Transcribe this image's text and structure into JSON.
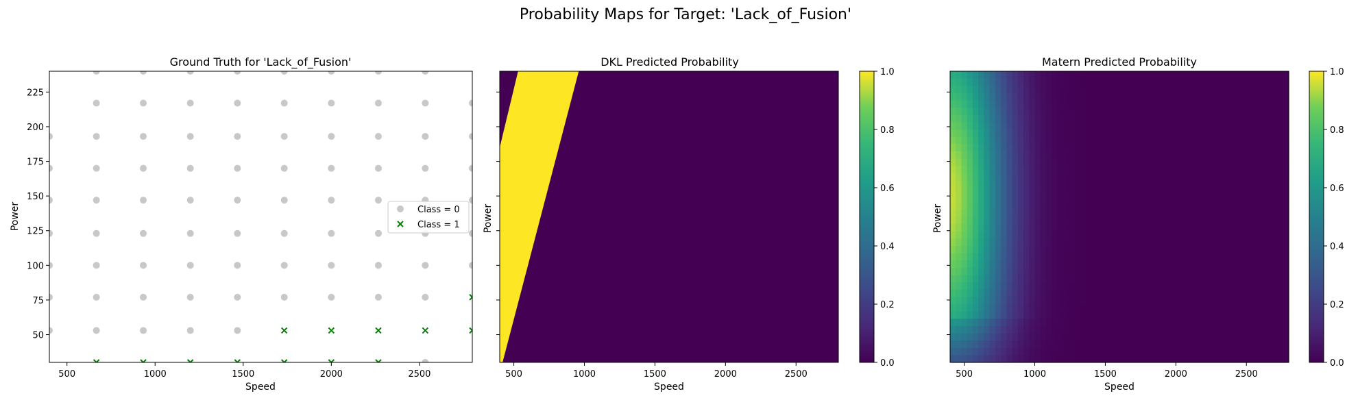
{
  "figure": {
    "title": "Probability Maps for Target: 'Lack_of_Fusion'"
  },
  "chart_data": [
    {
      "type": "scatter",
      "title": "Ground Truth for 'Lack_of_Fusion'",
      "xlabel": "Speed",
      "ylabel": "Power",
      "xlim": [
        400,
        2800
      ],
      "ylim": [
        30,
        240
      ],
      "xticks": [
        500,
        1000,
        1500,
        2000,
        2500
      ],
      "yticks": [
        50,
        75,
        100,
        125,
        150,
        175,
        200,
        225
      ],
      "legend_placement": "center-right",
      "series": [
        {
          "name": "Class = 0",
          "marker": "circle",
          "color": "#c8c8c8",
          "points": [
            [
              400,
              53
            ],
            [
              400,
              77
            ],
            [
              400,
              100
            ],
            [
              400,
              123
            ],
            [
              400,
              147
            ],
            [
              400,
              170
            ],
            [
              400,
              193
            ],
            [
              667,
              53
            ],
            [
              667,
              77
            ],
            [
              667,
              100
            ],
            [
              667,
              123
            ],
            [
              667,
              147
            ],
            [
              667,
              170
            ],
            [
              667,
              193
            ],
            [
              667,
              217
            ],
            [
              667,
              240
            ],
            [
              933,
              53
            ],
            [
              933,
              77
            ],
            [
              933,
              100
            ],
            [
              933,
              123
            ],
            [
              933,
              147
            ],
            [
              933,
              170
            ],
            [
              933,
              193
            ],
            [
              933,
              217
            ],
            [
              933,
              240
            ],
            [
              1200,
              53
            ],
            [
              1200,
              77
            ],
            [
              1200,
              100
            ],
            [
              1200,
              123
            ],
            [
              1200,
              147
            ],
            [
              1200,
              170
            ],
            [
              1200,
              193
            ],
            [
              1200,
              217
            ],
            [
              1200,
              240
            ],
            [
              1467,
              53
            ],
            [
              1467,
              77
            ],
            [
              1467,
              100
            ],
            [
              1467,
              123
            ],
            [
              1467,
              147
            ],
            [
              1467,
              170
            ],
            [
              1467,
              193
            ],
            [
              1467,
              217
            ],
            [
              1467,
              240
            ],
            [
              1733,
              77
            ],
            [
              1733,
              100
            ],
            [
              1733,
              123
            ],
            [
              1733,
              147
            ],
            [
              1733,
              170
            ],
            [
              1733,
              193
            ],
            [
              1733,
              217
            ],
            [
              1733,
              240
            ],
            [
              2000,
              77
            ],
            [
              2000,
              100
            ],
            [
              2000,
              123
            ],
            [
              2000,
              147
            ],
            [
              2000,
              170
            ],
            [
              2000,
              193
            ],
            [
              2000,
              217
            ],
            [
              2000,
              240
            ],
            [
              2267,
              77
            ],
            [
              2267,
              100
            ],
            [
              2267,
              123
            ],
            [
              2267,
              147
            ],
            [
              2267,
              170
            ],
            [
              2267,
              193
            ],
            [
              2267,
              217
            ],
            [
              2267,
              240
            ],
            [
              2533,
              30
            ],
            [
              2533,
              77
            ],
            [
              2533,
              100
            ],
            [
              2533,
              123
            ],
            [
              2533,
              147
            ],
            [
              2533,
              170
            ],
            [
              2533,
              193
            ],
            [
              2533,
              217
            ],
            [
              2533,
              240
            ],
            [
              2800,
              100
            ],
            [
              2800,
              123
            ],
            [
              2800,
              147
            ],
            [
              2800,
              170
            ],
            [
              2800,
              193
            ],
            [
              2800,
              217
            ]
          ]
        },
        {
          "name": "Class = 1",
          "marker": "x",
          "color": "#008000",
          "points": [
            [
              667,
              30
            ],
            [
              933,
              30
            ],
            [
              1200,
              30
            ],
            [
              1467,
              30
            ],
            [
              1733,
              30
            ],
            [
              2000,
              30
            ],
            [
              2267,
              30
            ],
            [
              1733,
              53
            ],
            [
              2000,
              53
            ],
            [
              2267,
              53
            ],
            [
              2533,
              53
            ],
            [
              2800,
              53
            ],
            [
              2800,
              77
            ]
          ]
        }
      ]
    },
    {
      "type": "heatmap",
      "title": "DKL Predicted Probability",
      "xlabel": "Speed",
      "ylabel": "Power",
      "xlim": [
        400,
        2800
      ],
      "ylim": [
        30,
        240
      ],
      "xticks": [
        500,
        1000,
        1500,
        2000,
        2500
      ],
      "colorbar": {
        "range": [
          0,
          1
        ],
        "ticks": [
          "0.0",
          "0.2",
          "0.4",
          "0.6",
          "0.8",
          "1.0"
        ]
      },
      "colormap": "viridis",
      "region": {
        "value_inside": 1.0,
        "value_outside": 0.0,
        "high_band_polygon_speed_power": [
          [
            400,
            30
          ],
          [
            420,
            30
          ],
          [
            960,
            240
          ],
          [
            530,
            240
          ],
          [
            400,
            185
          ]
        ]
      }
    },
    {
      "type": "heatmap",
      "title": "Matern Predicted Probability",
      "xlabel": "Speed",
      "ylabel": "Power",
      "xlim": [
        400,
        2800
      ],
      "ylim": [
        30,
        240
      ],
      "xticks": [
        500,
        1000,
        1500,
        2000,
        2500
      ],
      "colorbar": {
        "range": [
          0,
          1
        ],
        "ticks": [
          "0.0",
          "0.2",
          "0.4",
          "0.6",
          "0.8",
          "1.0"
        ]
      },
      "colormap": "viridis",
      "field": {
        "peak_speed": 400,
        "peak_power": 150,
        "peak_value": 0.95,
        "decay_speed_scale": 380
      }
    }
  ]
}
